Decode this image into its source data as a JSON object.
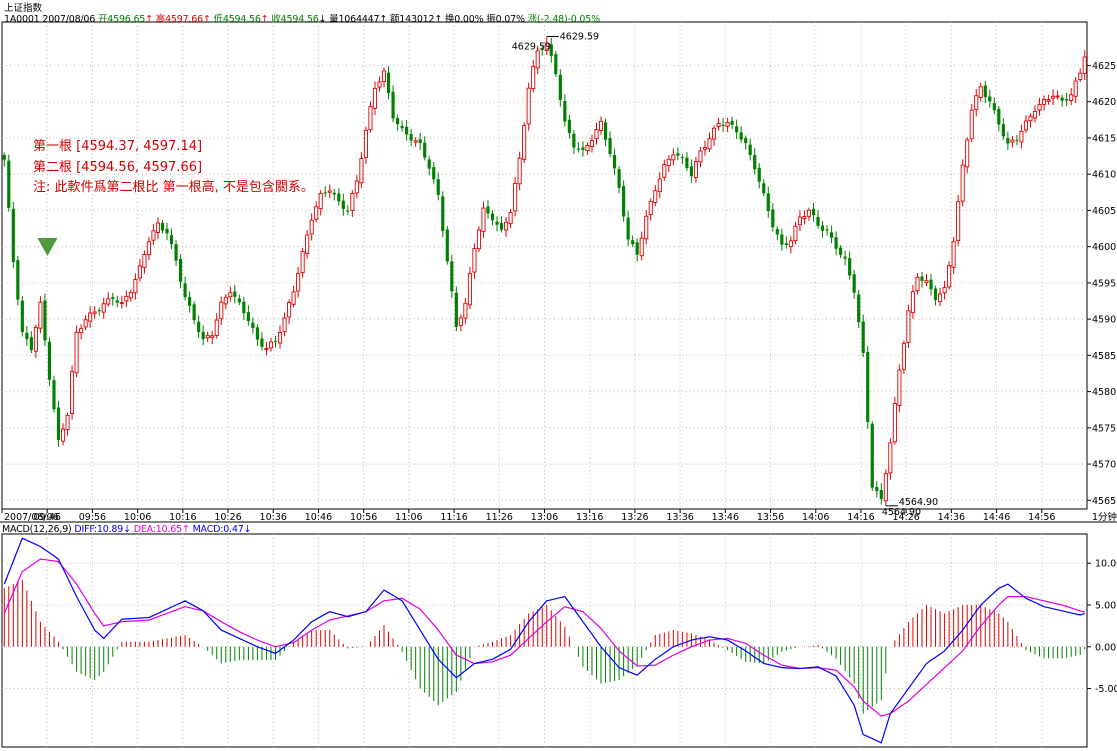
{
  "window_title": "上证指数",
  "info_bar": {
    "code": "1A0001",
    "date": "2007/08/06",
    "open_label": "开",
    "open": "4596.65",
    "open_arrow": "↑",
    "high_label": "高",
    "high": "4597.66",
    "high_arrow": "↑",
    "low_label": "低",
    "low": "4594.56",
    "low_arrow": "↑",
    "close_label": "收",
    "close": "4594.56",
    "close_arrow": "↓",
    "volume_label": "量",
    "volume": "1064447",
    "volume_arrow": "↑",
    "amount_label": "额",
    "amount": "143012",
    "amount_arrow": "↑",
    "turnover_label": "换",
    "turnover": "0.00%",
    "amplitude_label": "振",
    "amplitude": "0.07%",
    "change_label": "涨",
    "change": "(-2.48)-0.05%"
  },
  "annotation": {
    "line1": "第一根 [4594.37, 4597.14]",
    "line2": "第二根 [4594.56, 4597.66]",
    "line3": "注: 此軟件爲第二根比 第一根高, 不是包含關系。"
  },
  "macd_bar": {
    "name": "MACD(12,26,9)",
    "diff_label": "DIFF:",
    "diff": "10.89",
    "diff_arrow": "↓",
    "dea_label": "DEA:",
    "dea": "10.65",
    "dea_arrow": "↑",
    "macd_label": "MACD:",
    "macd": "0.47",
    "macd_arrow": "↓"
  },
  "colors": {
    "up": "#e00000",
    "down": "#008000",
    "diff": "#0000ff",
    "dea": "#e000e0",
    "grid": "#b8b8b8",
    "axis": "#000000",
    "marker": "#4f9a3c"
  },
  "chart_data": [
    {
      "type": "candlestick",
      "title": "上证指数 1分钟",
      "x_tick_labels": [
        "2007/08/06",
        "09:46",
        "09:56",
        "10:06",
        "10:16",
        "10:26",
        "10:36",
        "10:46",
        "10:56",
        "11:06",
        "11:16",
        "11:26",
        "13:06",
        "13:16",
        "13:26",
        "13:36",
        "13:46",
        "13:56",
        "14:06",
        "14:16",
        "14:26",
        "14:36",
        "14:46",
        "14:56"
      ],
      "x_axis_unit": "1分钟",
      "y_ticks": [
        4565.0,
        4570.0,
        4575.0,
        4580.0,
        4585.0,
        4590.0,
        4595.0,
        4600.0,
        4605.0,
        4610.0,
        4615.0,
        4620.0,
        4625.0
      ],
      "y_tick_labels": [
        "4565.0",
        "4570.0",
        "4575.0",
        "4580.0",
        "4585.0",
        "4590.0",
        "4595.0",
        "4600.0",
        "4605.0",
        "4610.0",
        "4615.0",
        "4620.0",
        "4625.0"
      ],
      "ylim": [
        4563.8,
        4631.0
      ],
      "high_label": "4629.59",
      "high_label_2": "4629.59",
      "low_label": "4564.90",
      "low_label_2": "4564.90",
      "close_anchors": [
        [
          0,
          4612
        ],
        [
          2,
          4598
        ],
        [
          4,
          4588
        ],
        [
          6,
          4586
        ],
        [
          8,
          4592
        ],
        [
          10,
          4582
        ],
        [
          12,
          4573
        ],
        [
          14,
          4577
        ],
        [
          16,
          4588
        ],
        [
          18,
          4590
        ],
        [
          20,
          4591
        ],
        [
          22,
          4592
        ],
        [
          24,
          4593
        ],
        [
          26,
          4592
        ],
        [
          28,
          4594
        ],
        [
          30,
          4597
        ],
        [
          32,
          4601
        ],
        [
          34,
          4603
        ],
        [
          36,
          4602
        ],
        [
          38,
          4598
        ],
        [
          40,
          4593
        ],
        [
          42,
          4590
        ],
        [
          44,
          4587
        ],
        [
          46,
          4588
        ],
        [
          48,
          4592
        ],
        [
          50,
          4594
        ],
        [
          52,
          4592
        ],
        [
          54,
          4590
        ],
        [
          56,
          4587
        ],
        [
          58,
          4586
        ],
        [
          60,
          4587
        ],
        [
          62,
          4590
        ],
        [
          64,
          4594
        ],
        [
          66,
          4599
        ],
        [
          68,
          4604
        ],
        [
          70,
          4607
        ],
        [
          72,
          4608
        ],
        [
          74,
          4606
        ],
        [
          76,
          4605
        ],
        [
          78,
          4609
        ],
        [
          80,
          4616
        ],
        [
          82,
          4622
        ],
        [
          84,
          4624
        ],
        [
          86,
          4618
        ],
        [
          88,
          4616
        ],
        [
          90,
          4615
        ],
        [
          92,
          4614
        ],
        [
          94,
          4611
        ],
        [
          96,
          4607
        ],
        [
          98,
          4598
        ],
        [
          100,
          4589
        ],
        [
          102,
          4592
        ],
        [
          104,
          4600
        ],
        [
          106,
          4605
        ],
        [
          108,
          4604
        ],
        [
          110,
          4602
        ],
        [
          112,
          4605
        ],
        [
          114,
          4612
        ],
        [
          116,
          4622
        ],
        [
          118,
          4627
        ],
        [
          120,
          4628
        ],
        [
          122,
          4624
        ],
        [
          124,
          4617
        ],
        [
          126,
          4614
        ],
        [
          128,
          4613
        ],
        [
          130,
          4615
        ],
        [
          132,
          4617
        ],
        [
          134,
          4613
        ],
        [
          136,
          4608
        ],
        [
          138,
          4601
        ],
        [
          140,
          4599
        ],
        [
          142,
          4604
        ],
        [
          144,
          4608
        ],
        [
          146,
          4611
        ],
        [
          148,
          4613
        ],
        [
          150,
          4612
        ],
        [
          152,
          4610
        ],
        [
          154,
          4613
        ],
        [
          156,
          4615
        ],
        [
          158,
          4617
        ],
        [
          160,
          4617
        ],
        [
          162,
          4616
        ],
        [
          164,
          4614
        ],
        [
          166,
          4611
        ],
        [
          168,
          4607
        ],
        [
          170,
          4603
        ],
        [
          172,
          4600
        ],
        [
          174,
          4601
        ],
        [
          176,
          4604
        ],
        [
          178,
          4605
        ],
        [
          180,
          4603
        ],
        [
          182,
          4602
        ],
        [
          184,
          4600
        ],
        [
          186,
          4598
        ],
        [
          188,
          4594
        ],
        [
          190,
          4585
        ],
        [
          192,
          4567
        ],
        [
          194,
          4565
        ],
        [
          196,
          4573
        ],
        [
          198,
          4583
        ],
        [
          200,
          4591
        ],
        [
          202,
          4596
        ],
        [
          204,
          4595
        ],
        [
          206,
          4593
        ],
        [
          208,
          4594
        ],
        [
          210,
          4601
        ],
        [
          212,
          4611
        ],
        [
          214,
          4619
        ],
        [
          216,
          4622
        ],
        [
          218,
          4620
        ],
        [
          220,
          4617
        ],
        [
          222,
          4614
        ],
        [
          224,
          4615
        ],
        [
          226,
          4617
        ],
        [
          228,
          4619
        ],
        [
          230,
          4620
        ],
        [
          232,
          4621
        ],
        [
          234,
          4620
        ],
        [
          236,
          4621
        ],
        [
          238,
          4624
        ],
        [
          240,
          4629
        ]
      ],
      "bars_count": 240,
      "annotated_bar_index": 10
    },
    {
      "type": "macd",
      "name": "MACD(12,26,9)",
      "series": [
        {
          "name": "DIFF",
          "color": "#0000ff",
          "anchors": [
            [
              0,
              7.5
            ],
            [
              4,
              13
            ],
            [
              8,
              12
            ],
            [
              12,
              10.5
            ],
            [
              16,
              6
            ],
            [
              20,
              2
            ],
            [
              22,
              1
            ],
            [
              26,
              3.3
            ],
            [
              32,
              3.5
            ],
            [
              36,
              4.5
            ],
            [
              40,
              5.5
            ],
            [
              44,
              4.3
            ],
            [
              48,
              2
            ],
            [
              52,
              1
            ],
            [
              56,
              0
            ],
            [
              60,
              -0.8
            ],
            [
              64,
              0.8
            ],
            [
              68,
              3
            ],
            [
              72,
              4.2
            ],
            [
              76,
              3.6
            ],
            [
              80,
              4.2
            ],
            [
              84,
              6.8
            ],
            [
              88,
              5.5
            ],
            [
              92,
              2
            ],
            [
              96,
              -1.5
            ],
            [
              100,
              -3.7
            ],
            [
              104,
              -2
            ],
            [
              108,
              -1.5
            ],
            [
              112,
              -0.3
            ],
            [
              116,
              3
            ],
            [
              120,
              5.5
            ],
            [
              124,
              6
            ],
            [
              128,
              3
            ],
            [
              132,
              0
            ],
            [
              136,
              -2.5
            ],
            [
              140,
              -3.4
            ],
            [
              144,
              -1.5
            ],
            [
              148,
              0
            ],
            [
              152,
              0.8
            ],
            [
              156,
              1.2
            ],
            [
              160,
              0.8
            ],
            [
              164,
              -0.5
            ],
            [
              168,
              -2
            ],
            [
              172,
              -2.5
            ],
            [
              176,
              -2.6
            ],
            [
              180,
              -2.4
            ],
            [
              184,
              -3.5
            ],
            [
              188,
              -7
            ],
            [
              190,
              -10.5
            ],
            [
              194,
              -11.5
            ],
            [
              196,
              -8
            ],
            [
              200,
              -5
            ],
            [
              204,
              -2
            ],
            [
              208,
              -0.5
            ],
            [
              212,
              2
            ],
            [
              216,
              5
            ],
            [
              220,
              7
            ],
            [
              222,
              7.5
            ],
            [
              226,
              5.8
            ],
            [
              230,
              4.8
            ],
            [
              234,
              4.3
            ],
            [
              238,
              3.8
            ],
            [
              240,
              4.2
            ]
          ]
        },
        {
          "name": "DEA",
          "color": "#e000e0",
          "anchors": [
            [
              0,
              4
            ],
            [
              4,
              9
            ],
            [
              8,
              10.5
            ],
            [
              12,
              10.2
            ],
            [
              16,
              7.5
            ],
            [
              20,
              4
            ],
            [
              22,
              2.5
            ],
            [
              26,
              3
            ],
            [
              32,
              3.2
            ],
            [
              36,
              4
            ],
            [
              40,
              4.8
            ],
            [
              44,
              4.3
            ],
            [
              48,
              3
            ],
            [
              52,
              1.8
            ],
            [
              56,
              0.8
            ],
            [
              60,
              0
            ],
            [
              64,
              0.5
            ],
            [
              68,
              2
            ],
            [
              72,
              3.2
            ],
            [
              76,
              3.7
            ],
            [
              80,
              4.2
            ],
            [
              84,
              5.5
            ],
            [
              88,
              5.8
            ],
            [
              92,
              4.5
            ],
            [
              96,
              2
            ],
            [
              100,
              -1
            ],
            [
              104,
              -2
            ],
            [
              108,
              -1.8
            ],
            [
              112,
              -1
            ],
            [
              116,
              1
            ],
            [
              120,
              3
            ],
            [
              124,
              4.8
            ],
            [
              128,
              4.2
            ],
            [
              132,
              2.2
            ],
            [
              136,
              -0.5
            ],
            [
              140,
              -2.3
            ],
            [
              144,
              -2.2
            ],
            [
              148,
              -1
            ],
            [
              152,
              0
            ],
            [
              156,
              0.8
            ],
            [
              160,
              1
            ],
            [
              164,
              0.4
            ],
            [
              168,
              -1
            ],
            [
              172,
              -2.2
            ],
            [
              176,
              -2.6
            ],
            [
              180,
              -2.5
            ],
            [
              184,
              -2.8
            ],
            [
              188,
              -4.8
            ],
            [
              190,
              -6.5
            ],
            [
              194,
              -8.3
            ],
            [
              196,
              -8
            ],
            [
              200,
              -6.5
            ],
            [
              204,
              -4.5
            ],
            [
              208,
              -2.5
            ],
            [
              212,
              -0.5
            ],
            [
              216,
              2.5
            ],
            [
              220,
              5
            ],
            [
              222,
              6
            ],
            [
              226,
              6
            ],
            [
              230,
              5.5
            ],
            [
              234,
              5
            ],
            [
              238,
              4.3
            ],
            [
              240,
              4
            ]
          ]
        }
      ],
      "y_ticks": [
        -5,
        0,
        5,
        10
      ],
      "y_tick_labels": [
        "-5.00",
        "0.00",
        "5.00",
        "10.00"
      ],
      "ylim": [
        -12,
        13.5
      ]
    }
  ]
}
